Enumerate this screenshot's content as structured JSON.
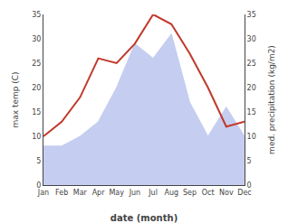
{
  "chart_data": {
    "type": "line",
    "xlabel": "date (month)",
    "ylabel": "max temp (C)",
    "y2label": "med. precipitation (kg/m2)",
    "categories": [
      "Jan",
      "Feb",
      "Mar",
      "Apr",
      "May",
      "Jun",
      "Jul",
      "Aug",
      "Sep",
      "Oct",
      "Nov",
      "Dec"
    ],
    "series": [
      {
        "type": "area",
        "axis": "y2",
        "color": "#c5cdf0",
        "values": [
          8,
          8,
          10,
          13,
          20,
          29,
          26,
          31,
          17,
          10,
          16,
          10
        ]
      },
      {
        "type": "line",
        "color": "#c0392b",
        "values": [
          10,
          13,
          18,
          26,
          25,
          29,
          35,
          33,
          27,
          20,
          12,
          13
        ]
      }
    ],
    "ylim": [
      0,
      35
    ],
    "yticks": [
      0,
      5,
      10,
      15,
      20,
      25,
      30,
      35
    ],
    "y2lim": [
      0,
      35
    ],
    "y2ticks": [
      0,
      5,
      10,
      15,
      20,
      25,
      30,
      35
    ],
    "grid": false
  }
}
